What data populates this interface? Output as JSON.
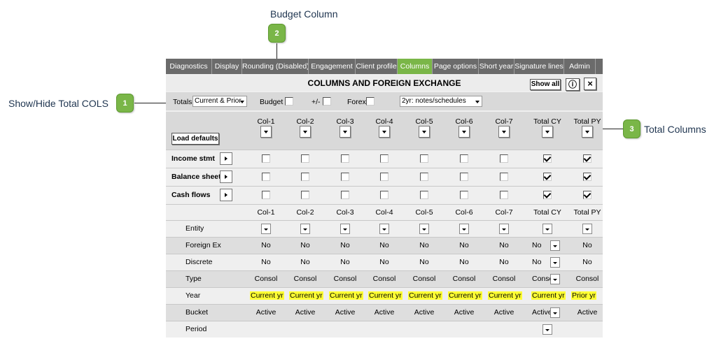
{
  "callouts": {
    "budget": {
      "label": "Budget Column",
      "number": "2"
    },
    "totals": {
      "label": "Show/Hide Total COLS",
      "number": "1"
    },
    "total_columns": {
      "label": "Total Columns",
      "number": "3"
    }
  },
  "tabs": [
    {
      "label": "Diagnostics",
      "active": false
    },
    {
      "label": "Display",
      "active": false
    },
    {
      "label": "Rounding (Disabled)",
      "active": false
    },
    {
      "label": "Engagement",
      "active": false
    },
    {
      "label": "Client profile",
      "active": false
    },
    {
      "label": "Columns",
      "active": true
    },
    {
      "label": "Page options",
      "active": false
    },
    {
      "label": "Short year",
      "active": false
    },
    {
      "label": "Signature lines",
      "active": false
    },
    {
      "label": "Admin",
      "active": false
    }
  ],
  "panel": {
    "title": "COLUMNS AND FOREIGN EXCHANGE",
    "show_all": "Show all",
    "info": "ⓘ",
    "close": "×"
  },
  "toolbar": {
    "totals_label": "Totals",
    "totals_value": "Current & Prior",
    "budget_label": "Budget",
    "plusminus_label": "+/-",
    "forex_label": "Forex",
    "notes_value": "2yr: notes/schedules"
  },
  "load_defaults": "Load defaults",
  "columns": [
    "Col-1",
    "Col-2",
    "Col-3",
    "Col-4",
    "Col-5",
    "Col-6",
    "Col-7",
    "Total CY",
    "Total PY"
  ],
  "sections": [
    {
      "label": "Income stmt",
      "checks": [
        false,
        false,
        false,
        false,
        false,
        false,
        false,
        true,
        true
      ]
    },
    {
      "label": "Balance sheet",
      "checks": [
        false,
        false,
        false,
        false,
        false,
        false,
        false,
        true,
        true
      ]
    },
    {
      "label": "Cash flows",
      "checks": [
        false,
        false,
        false,
        false,
        false,
        false,
        false,
        true,
        true
      ]
    }
  ],
  "detail_rows": [
    {
      "label": "Entity",
      "values": [
        "",
        "",
        "",
        "",
        "",
        "",
        "",
        "",
        ""
      ],
      "dropdown": [
        true,
        true,
        true,
        true,
        true,
        true,
        true,
        true,
        true
      ]
    },
    {
      "label": "Foreign Ex",
      "values": [
        "No",
        "No",
        "No",
        "No",
        "No",
        "No",
        "No",
        "No",
        "No"
      ],
      "dropdown": [
        false,
        false,
        false,
        false,
        false,
        false,
        false,
        true,
        false
      ]
    },
    {
      "label": "Discrete",
      "values": [
        "No",
        "No",
        "No",
        "No",
        "No",
        "No",
        "No",
        "No",
        "No"
      ],
      "dropdown": [
        false,
        false,
        false,
        false,
        false,
        false,
        false,
        true,
        false
      ]
    },
    {
      "label": "Type",
      "values": [
        "Consol",
        "Consol",
        "Consol",
        "Consol",
        "Consol",
        "Consol",
        "Consol",
        "Consol",
        "Consol"
      ],
      "dropdown": [
        false,
        false,
        false,
        false,
        false,
        false,
        false,
        true,
        false
      ]
    },
    {
      "label": "Year",
      "values": [
        "Current yr",
        "Current yr",
        "Current yr",
        "Current yr",
        "Current yr",
        "Current yr",
        "Current yr",
        "Current yr",
        "Prior yr"
      ],
      "dropdown": [
        false,
        false,
        false,
        false,
        false,
        false,
        false,
        false,
        false
      ],
      "highlight": true
    },
    {
      "label": "Bucket",
      "values": [
        "Active",
        "Active",
        "Active",
        "Active",
        "Active",
        "Active",
        "Active",
        "Active",
        "Active"
      ],
      "dropdown": [
        false,
        false,
        false,
        false,
        false,
        false,
        false,
        true,
        false
      ]
    },
    {
      "label": "Period",
      "values": [
        "",
        "",
        "",
        "",
        "",
        "",
        "",
        "",
        ""
      ],
      "dropdown": [
        false,
        false,
        false,
        false,
        false,
        false,
        false,
        true,
        false
      ]
    }
  ],
  "colors": {
    "accent": "#7ab648",
    "tabbar": "#6b6b6b",
    "highlight": "#ffff33",
    "callout_text": "#1f3550"
  }
}
